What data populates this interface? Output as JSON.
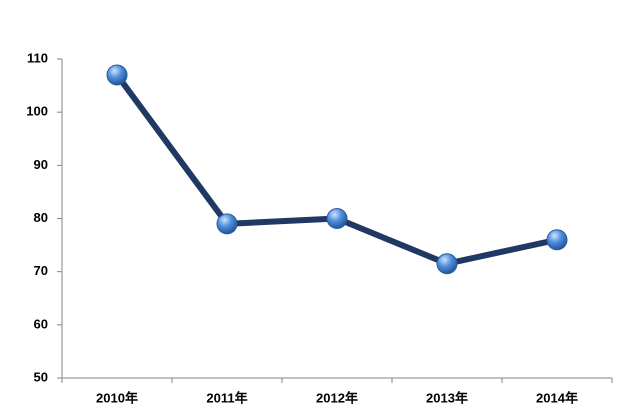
{
  "chart_data": {
    "type": "line",
    "categories": [
      "2010年",
      "2011年",
      "2012年",
      "2013年",
      "2014年"
    ],
    "values": [
      107,
      79,
      80,
      71.5,
      76
    ],
    "color": "#1f3864",
    "marker_color": "#4f8fdc",
    "ylim": [
      50,
      110
    ],
    "yticks": [
      50,
      60,
      70,
      80,
      90,
      100,
      110
    ],
    "grid": false
  }
}
